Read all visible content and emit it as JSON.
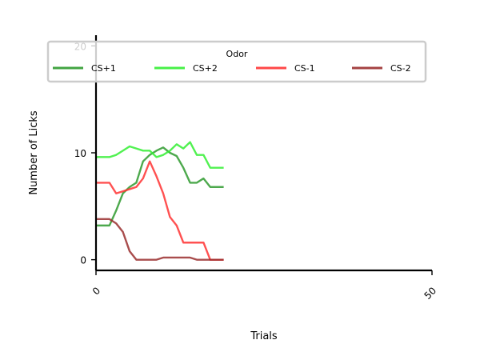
{
  "chart_data": {
    "type": "line",
    "title": "",
    "xlabel": "Trials",
    "ylabel": "Number of Licks",
    "xlim": [
      0,
      50
    ],
    "ylim": [
      -1,
      21
    ],
    "xticks": [
      0,
      50
    ],
    "yticks": [
      0,
      10,
      20
    ],
    "grid": false,
    "legend": {
      "title": "Odor",
      "placement": "top",
      "columns": 4
    },
    "series": [
      {
        "name": "CS+1",
        "color": "#2e9a2e",
        "x": [
          0,
          1,
          2,
          3,
          4,
          5,
          6,
          7,
          8,
          9,
          10,
          11,
          12,
          13,
          14,
          15,
          16,
          17,
          18,
          19
        ],
        "y": [
          3.2,
          3.2,
          3.2,
          4.6,
          6.2,
          6.8,
          7.2,
          9.2,
          9.8,
          10.2,
          10.5,
          10.0,
          9.7,
          8.6,
          7.2,
          7.2,
          7.6,
          6.8,
          6.8,
          6.8
        ]
      },
      {
        "name": "CS+2",
        "color": "#33ee33",
        "x": [
          0,
          1,
          2,
          3,
          4,
          5,
          6,
          7,
          8,
          9,
          10,
          11,
          12,
          13,
          14,
          15,
          16,
          17,
          18,
          19
        ],
        "y": [
          9.6,
          9.6,
          9.6,
          9.8,
          10.2,
          10.6,
          10.4,
          10.2,
          10.2,
          9.6,
          9.8,
          10.2,
          10.8,
          10.4,
          11.0,
          9.8,
          9.8,
          8.6,
          8.6,
          8.6
        ]
      },
      {
        "name": "CS-1",
        "color": "#ff3333",
        "x": [
          0,
          1,
          2,
          3,
          4,
          5,
          6,
          7,
          8,
          9,
          10,
          11,
          12,
          13,
          14,
          15,
          16,
          17,
          18,
          19
        ],
        "y": [
          7.2,
          7.2,
          7.2,
          6.2,
          6.4,
          6.6,
          6.8,
          7.6,
          9.2,
          7.8,
          6.2,
          4.0,
          3.2,
          1.6,
          1.6,
          1.6,
          1.6,
          0.0,
          0.0,
          0.0
        ]
      },
      {
        "name": "CS-2",
        "color": "#9a2e2e",
        "x": [
          0,
          1,
          2,
          3,
          4,
          5,
          6,
          7,
          8,
          9,
          10,
          11,
          12,
          13,
          14,
          15,
          16,
          17,
          18,
          19
        ],
        "y": [
          3.8,
          3.8,
          3.8,
          3.4,
          2.6,
          0.8,
          0.0,
          0.0,
          0.0,
          0.0,
          0.2,
          0.2,
          0.2,
          0.2,
          0.2,
          0.0,
          0.0,
          0.0,
          0.0,
          0.0
        ]
      }
    ]
  }
}
